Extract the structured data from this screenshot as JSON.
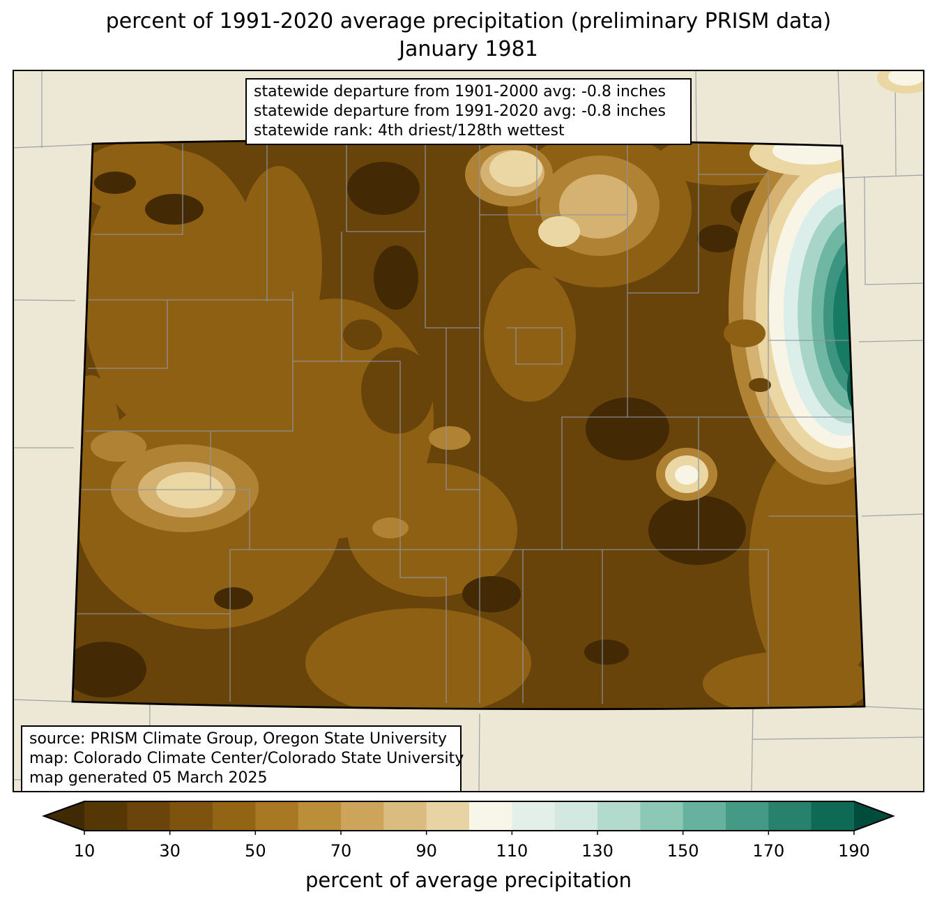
{
  "title": {
    "line1": "percent of 1991-2020 average precipitation (preliminary PRISM data)",
    "line2": "January 1981"
  },
  "stats_box": {
    "lines": [
      "statewide departure from 1901-2000 avg: -0.8 inches",
      "statewide departure from 1991-2020 avg: -0.8 inches",
      "statewide rank: 4th driest/128th wettest"
    ]
  },
  "source_box": {
    "lines": [
      "source: PRISM Climate Group, Oregon State University",
      "map: Colorado Climate Center/Colorado State University",
      "map generated 05 March 2025"
    ]
  },
  "colorbar": {
    "label": "percent of average precipitation",
    "ticks": [
      10,
      30,
      50,
      70,
      90,
      110,
      130,
      150,
      170,
      190
    ],
    "arrow_left_color": "#3f2a04",
    "arrow_right_color": "#004c3c",
    "segments": [
      {
        "from": 10,
        "to": 20,
        "color": "#553605"
      },
      {
        "from": 20,
        "to": 30,
        "color": "#6a440a"
      },
      {
        "from": 30,
        "to": 40,
        "color": "#7e530e"
      },
      {
        "from": 40,
        "to": 50,
        "color": "#936414"
      },
      {
        "from": 50,
        "to": 60,
        "color": "#a87922"
      },
      {
        "from": 60,
        "to": 70,
        "color": "#bb8f3a"
      },
      {
        "from": 70,
        "to": 80,
        "color": "#cca55b"
      },
      {
        "from": 80,
        "to": 90,
        "color": "#dbbc80"
      },
      {
        "from": 90,
        "to": 100,
        "color": "#e8d3a4"
      },
      {
        "from": 100,
        "to": 110,
        "color": "#f8f5e9"
      },
      {
        "from": 110,
        "to": 120,
        "color": "#e3efe9"
      },
      {
        "from": 120,
        "to": 130,
        "color": "#d2e8e0"
      },
      {
        "from": 130,
        "to": 140,
        "color": "#b2dacd"
      },
      {
        "from": 140,
        "to": 150,
        "color": "#8dc8b7"
      },
      {
        "from": 150,
        "to": 160,
        "color": "#67b29e"
      },
      {
        "from": 160,
        "to": 170,
        "color": "#459a85"
      },
      {
        "from": 170,
        "to": 180,
        "color": "#27816b"
      },
      {
        "from": 180,
        "to": 190,
        "color": "#0e6a55"
      }
    ]
  },
  "map": {
    "region": "Colorado",
    "units": "percent of average precipitation",
    "palette": {
      "background": "#ece8d5",
      "county_line": "#8e959e",
      "base": "#68430a",
      "very_dark": "#432a04",
      "caramel": "#8e6014",
      "tan": "#b08334",
      "light": "#d5b272",
      "cream": "#ead7a3",
      "white": "#f8f4e6",
      "teal_pale": "#dceee9",
      "teal_light": "#a8d5c8",
      "teal": "#6fb6a3",
      "teal_mid": "#3d9480",
      "teal_dark": "#177a63",
      "teal_deep": "#045c49"
    }
  }
}
